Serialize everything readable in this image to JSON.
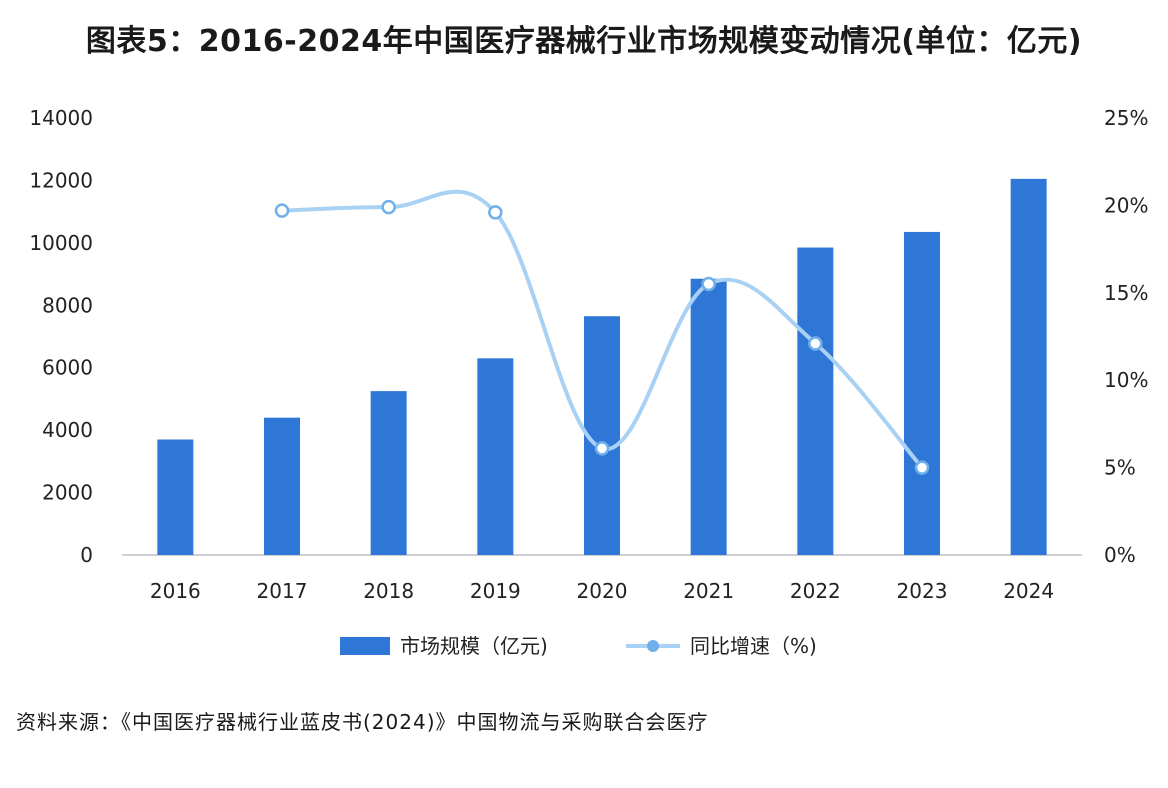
{
  "title": "图表5：2016-2024年中国医疗器械行业市场规模变动情况(单位：亿元)",
  "source": "资料来源：《中国医疗器械行业蓝皮书(2024)》中国物流与采购联合会医疗",
  "colors": {
    "bar": "#2f77d6",
    "line": "#a8d1f3",
    "marker": "#6fb0ea",
    "axis": "#bfbfbf"
  },
  "chart_data": {
    "type": "bar",
    "categories": [
      "2016",
      "2017",
      "2018",
      "2019",
      "2020",
      "2021",
      "2022",
      "2023",
      "2024"
    ],
    "series": [
      {
        "name": "市场规模（亿元)",
        "type": "bar",
        "axis": "left",
        "values": [
          3700,
          4400,
          5250,
          6300,
          7650,
          8850,
          9850,
          10350,
          12050
        ]
      },
      {
        "name": "同比增速（%)",
        "type": "line",
        "axis": "right",
        "values": [
          null,
          19.7,
          19.9,
          19.6,
          6.1,
          15.5,
          12.1,
          null,
          null
        ],
        "extra_points": [
          {
            "x": "2023",
            "y": 5.0
          }
        ]
      }
    ],
    "left_axis": {
      "ticks": [
        "0",
        "2000",
        "4000",
        "6000",
        "8000",
        "10000",
        "12000",
        "14000"
      ],
      "ylim": [
        0,
        14000
      ]
    },
    "right_axis": {
      "ticks": [
        "0%",
        "5%",
        "10%",
        "15%",
        "20%",
        "25%"
      ],
      "ylim": [
        0,
        25
      ]
    },
    "legend": {
      "position": "bottom",
      "items": [
        "市场规模（亿元)",
        "同比增速（%)"
      ]
    },
    "grid": false
  }
}
